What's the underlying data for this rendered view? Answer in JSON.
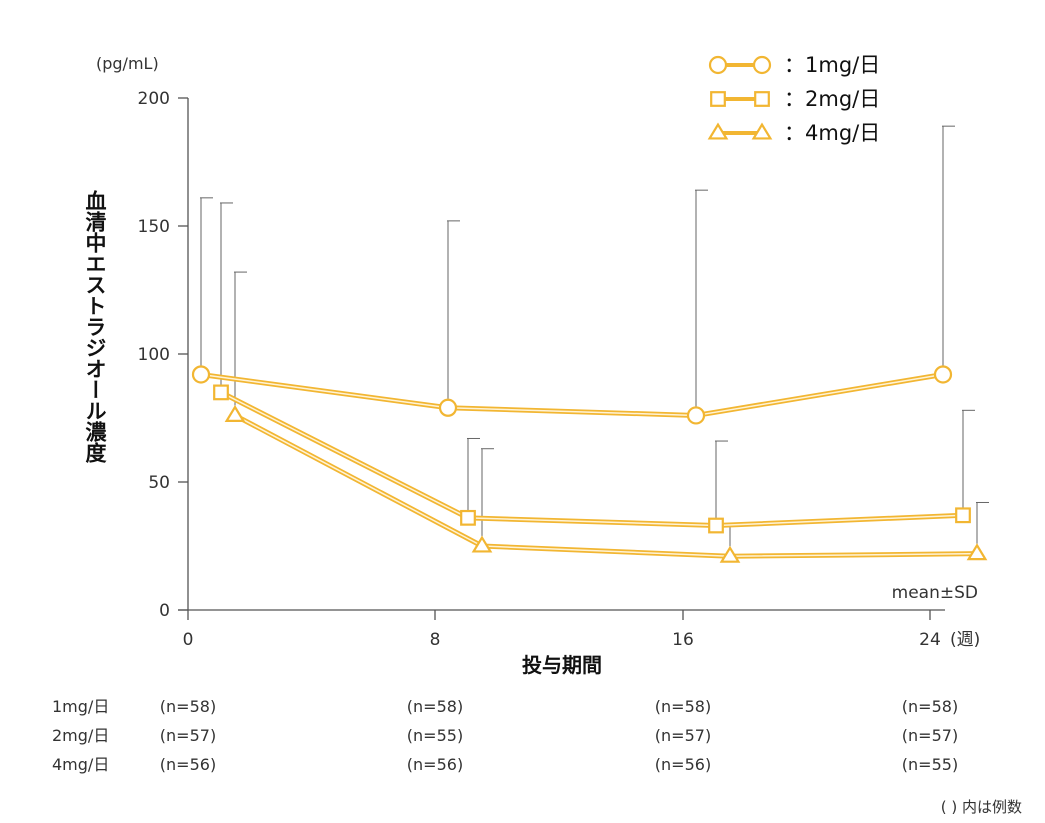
{
  "chart_data": {
    "type": "line",
    "ylabel": "血清中エストラジオール濃度",
    "y_unit": "(pg/mL)",
    "xlabel": "投与期間",
    "x_unit": "(週)",
    "ylim": [
      0,
      200
    ],
    "y_ticks": [
      0,
      50,
      100,
      150,
      200
    ],
    "x_ticks": [
      0,
      8,
      16,
      24
    ],
    "grid": false,
    "legend_position": "top-right",
    "series_color": "#F2B632",
    "annotation": "mean±SD",
    "footnote": "(  ) 内は例数",
    "series": [
      {
        "name": "：1mg/日",
        "marker": "circle",
        "x": [
          0,
          8,
          16,
          24
        ],
        "mean": [
          92,
          79,
          76,
          92
        ],
        "sd_upper": [
          161,
          152,
          164,
          189
        ]
      },
      {
        "name": "：2mg/日",
        "marker": "square",
        "x": [
          0,
          8,
          16,
          24
        ],
        "mean": [
          85,
          36,
          33,
          37
        ],
        "sd_upper": [
          159,
          67,
          66,
          78
        ]
      },
      {
        "name": "：4mg/日",
        "marker": "triangle",
        "x": [
          0,
          8,
          16,
          24
        ],
        "mean": [
          76,
          25,
          21,
          22
        ],
        "sd_upper": [
          132,
          63,
          33,
          42
        ]
      }
    ],
    "n_table": {
      "rows": [
        {
          "label": "1mg/日",
          "values": [
            "(n=58)",
            "(n=58)",
            "(n=58)",
            "(n=58)"
          ]
        },
        {
          "label": "2mg/日",
          "values": [
            "(n=57)",
            "(n=55)",
            "(n=57)",
            "(n=57)"
          ]
        },
        {
          "label": "4mg/日",
          "values": [
            "(n=56)",
            "(n=56)",
            "(n=56)",
            "(n=55)"
          ]
        }
      ]
    }
  }
}
